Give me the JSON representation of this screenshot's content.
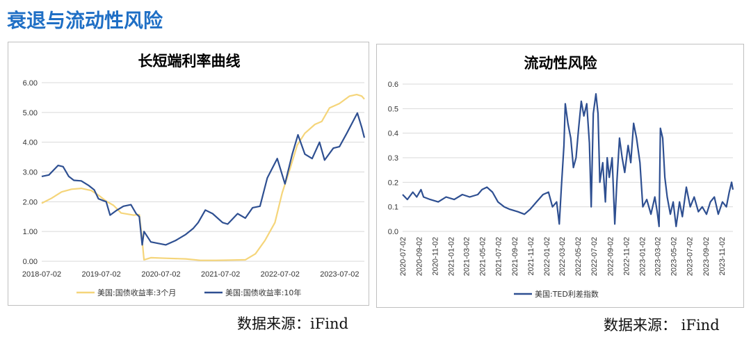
{
  "page": {
    "title": "衰退与流动性风险"
  },
  "source_left": "数据来源：iFind",
  "source_right": "数据来源： iFind",
  "chart_data": [
    {
      "type": "line",
      "title": "长短端利率曲线",
      "ylim": [
        0,
        6
      ],
      "y_ticks": [
        "0.00",
        "1.00",
        "2.00",
        "3.00",
        "4.00",
        "5.00",
        "6.00"
      ],
      "x_ticks": [
        "2018-07-02",
        "2019-07-02",
        "2020-07-02",
        "2021-07-02",
        "2022-07-02",
        "2023-07-02"
      ],
      "x_range": [
        "2018-07-02",
        "2023-12-01"
      ],
      "legend_position": "bottom",
      "series": [
        {
          "name": "美国:国债收益率:3个月",
          "color": "#f5d57a",
          "points": [
            [
              "2018-07-02",
              1.95
            ],
            [
              "2018-09-01",
              2.12
            ],
            [
              "2018-11-01",
              2.33
            ],
            [
              "2019-01-01",
              2.42
            ],
            [
              "2019-03-01",
              2.45
            ],
            [
              "2019-05-01",
              2.38
            ],
            [
              "2019-06-15",
              2.22
            ],
            [
              "2019-08-01",
              2.02
            ],
            [
              "2019-09-15",
              1.88
            ],
            [
              "2019-11-01",
              1.62
            ],
            [
              "2020-01-15",
              1.55
            ],
            [
              "2020-02-20",
              1.57
            ],
            [
              "2020-03-05",
              0.9
            ],
            [
              "2020-03-20",
              0.05
            ],
            [
              "2020-05-01",
              0.12
            ],
            [
              "2020-08-01",
              0.1
            ],
            [
              "2020-12-01",
              0.08
            ],
            [
              "2021-03-01",
              0.03
            ],
            [
              "2021-06-01",
              0.03
            ],
            [
              "2021-09-01",
              0.04
            ],
            [
              "2021-12-01",
              0.05
            ],
            [
              "2022-02-01",
              0.25
            ],
            [
              "2022-04-01",
              0.7
            ],
            [
              "2022-06-01",
              1.3
            ],
            [
              "2022-07-15",
              2.3
            ],
            [
              "2022-09-01",
              3.1
            ],
            [
              "2022-10-15",
              3.9
            ],
            [
              "2022-12-01",
              4.3
            ],
            [
              "2023-02-01",
              4.6
            ],
            [
              "2023-03-15",
              4.7
            ],
            [
              "2023-05-01",
              5.15
            ],
            [
              "2023-07-01",
              5.3
            ],
            [
              "2023-09-01",
              5.55
            ],
            [
              "2023-10-15",
              5.6
            ],
            [
              "2023-11-15",
              5.55
            ],
            [
              "2023-12-01",
              5.45
            ]
          ]
        },
        {
          "name": "美国:国债收益率:10年",
          "color": "#2e4f91",
          "points": [
            [
              "2018-07-02",
              2.85
            ],
            [
              "2018-08-15",
              2.9
            ],
            [
              "2018-10-10",
              3.22
            ],
            [
              "2018-11-10",
              3.18
            ],
            [
              "2018-12-15",
              2.85
            ],
            [
              "2019-01-15",
              2.72
            ],
            [
              "2019-03-01",
              2.7
            ],
            [
              "2019-04-15",
              2.55
            ],
            [
              "2019-05-20",
              2.4
            ],
            [
              "2019-06-15",
              2.1
            ],
            [
              "2019-08-01",
              2.0
            ],
            [
              "2019-08-25",
              1.55
            ],
            [
              "2019-10-01",
              1.7
            ],
            [
              "2019-11-15",
              1.85
            ],
            [
              "2019-12-31",
              1.9
            ],
            [
              "2020-02-01",
              1.6
            ],
            [
              "2020-02-20",
              1.5
            ],
            [
              "2020-03-09",
              0.55
            ],
            [
              "2020-03-20",
              1.0
            ],
            [
              "2020-05-01",
              0.65
            ],
            [
              "2020-08-01",
              0.55
            ],
            [
              "2020-10-01",
              0.7
            ],
            [
              "2020-12-01",
              0.9
            ],
            [
              "2021-01-15",
              1.1
            ],
            [
              "2021-02-15",
              1.3
            ],
            [
              "2021-03-31",
              1.72
            ],
            [
              "2021-05-15",
              1.6
            ],
            [
              "2021-07-15",
              1.3
            ],
            [
              "2021-08-15",
              1.25
            ],
            [
              "2021-10-15",
              1.6
            ],
            [
              "2021-12-01",
              1.45
            ],
            [
              "2022-01-15",
              1.8
            ],
            [
              "2022-03-01",
              1.85
            ],
            [
              "2022-04-15",
              2.8
            ],
            [
              "2022-06-15",
              3.45
            ],
            [
              "2022-08-01",
              2.6
            ],
            [
              "2022-09-15",
              3.6
            ],
            [
              "2022-10-20",
              4.25
            ],
            [
              "2022-12-01",
              3.6
            ],
            [
              "2023-01-15",
              3.45
            ],
            [
              "2023-03-01",
              4.0
            ],
            [
              "2023-04-01",
              3.4
            ],
            [
              "2023-05-25",
              3.8
            ],
            [
              "2023-07-01",
              3.85
            ],
            [
              "2023-08-15",
              4.3
            ],
            [
              "2023-10-19",
              4.98
            ],
            [
              "2023-11-15",
              4.5
            ],
            [
              "2023-12-01",
              4.15
            ]
          ]
        }
      ]
    },
    {
      "type": "line",
      "title": "流动性风险",
      "ylim": [
        0,
        0.6
      ],
      "y_ticks": [
        "0.0",
        "0.1",
        "0.2",
        "0.3",
        "0.4",
        "0.5",
        "0.6"
      ],
      "x_ticks": [
        "2020-07-02",
        "2020-09-02",
        "2020-11-02",
        "2021-01-02",
        "2021-03-02",
        "2021-05-02",
        "2021-07-02",
        "2021-09-02",
        "2021-11-02",
        "2022-01-02",
        "2022-03-02",
        "2022-05-02",
        "2022-07-02",
        "2022-09-02",
        "2022-11-02",
        "2023-01-02",
        "2023-03-02",
        "2023-05-02",
        "2023-07-02",
        "2023-09-02",
        "2023-11-02"
      ],
      "x_range": [
        "2020-07-02",
        "2023-12-15"
      ],
      "legend_position": "bottom",
      "series": [
        {
          "name": "美国:TED利差指数",
          "color": "#2e4f91",
          "points": [
            [
              "2020-07-02",
              0.15
            ],
            [
              "2020-07-20",
              0.13
            ],
            [
              "2020-08-10",
              0.16
            ],
            [
              "2020-08-25",
              0.14
            ],
            [
              "2020-09-10",
              0.17
            ],
            [
              "2020-09-20",
              0.14
            ],
            [
              "2020-10-15",
              0.13
            ],
            [
              "2020-11-15",
              0.12
            ],
            [
              "2020-12-15",
              0.14
            ],
            [
              "2021-01-15",
              0.13
            ],
            [
              "2021-02-15",
              0.15
            ],
            [
              "2021-03-15",
              0.14
            ],
            [
              "2021-04-15",
              0.15
            ],
            [
              "2021-05-01",
              0.17
            ],
            [
              "2021-05-20",
              0.18
            ],
            [
              "2021-06-10",
              0.16
            ],
            [
              "2021-07-01",
              0.12
            ],
            [
              "2021-07-25",
              0.1
            ],
            [
              "2021-08-15",
              0.09
            ],
            [
              "2021-09-15",
              0.08
            ],
            [
              "2021-10-10",
              0.07
            ],
            [
              "2021-11-01",
              0.09
            ],
            [
              "2021-11-25",
              0.12
            ],
            [
              "2021-12-20",
              0.15
            ],
            [
              "2022-01-10",
              0.16
            ],
            [
              "2022-01-25",
              0.1
            ],
            [
              "2022-02-10",
              0.12
            ],
            [
              "2022-02-20",
              0.03
            ],
            [
              "2022-02-28",
              0.18
            ],
            [
              "2022-03-10",
              0.35
            ],
            [
              "2022-03-15",
              0.52
            ],
            [
              "2022-03-25",
              0.44
            ],
            [
              "2022-04-05",
              0.38
            ],
            [
              "2022-04-15",
              0.26
            ],
            [
              "2022-04-25",
              0.3
            ],
            [
              "2022-05-05",
              0.42
            ],
            [
              "2022-05-15",
              0.53
            ],
            [
              "2022-05-25",
              0.47
            ],
            [
              "2022-06-05",
              0.52
            ],
            [
              "2022-06-15",
              0.36
            ],
            [
              "2022-06-22",
              0.1
            ],
            [
              "2022-06-30",
              0.48
            ],
            [
              "2022-07-10",
              0.56
            ],
            [
              "2022-07-18",
              0.48
            ],
            [
              "2022-07-25",
              0.2
            ],
            [
              "2022-08-05",
              0.28
            ],
            [
              "2022-08-15",
              0.12
            ],
            [
              "2022-08-22",
              0.3
            ],
            [
              "2022-08-30",
              0.22
            ],
            [
              "2022-09-10",
              0.3
            ],
            [
              "2022-09-20",
              0.03
            ],
            [
              "2022-09-28",
              0.2
            ],
            [
              "2022-10-08",
              0.38
            ],
            [
              "2022-10-18",
              0.3
            ],
            [
              "2022-10-28",
              0.24
            ],
            [
              "2022-11-10",
              0.35
            ],
            [
              "2022-11-20",
              0.28
            ],
            [
              "2022-12-01",
              0.44
            ],
            [
              "2022-12-12",
              0.38
            ],
            [
              "2022-12-25",
              0.28
            ],
            [
              "2023-01-05",
              0.1
            ],
            [
              "2023-01-20",
              0.13
            ],
            [
              "2023-02-05",
              0.07
            ],
            [
              "2023-02-20",
              0.14
            ],
            [
              "2023-03-01",
              0.08
            ],
            [
              "2023-03-08",
              0.02
            ],
            [
              "2023-03-13",
              0.42
            ],
            [
              "2023-03-22",
              0.38
            ],
            [
              "2023-03-30",
              0.22
            ],
            [
              "2023-04-08",
              0.14
            ],
            [
              "2023-04-20",
              0.07
            ],
            [
              "2023-05-01",
              0.12
            ],
            [
              "2023-05-12",
              0.02
            ],
            [
              "2023-05-25",
              0.12
            ],
            [
              "2023-06-05",
              0.06
            ],
            [
              "2023-06-20",
              0.18
            ],
            [
              "2023-07-05",
              0.1
            ],
            [
              "2023-07-20",
              0.14
            ],
            [
              "2023-08-05",
              0.08
            ],
            [
              "2023-08-20",
              0.1
            ],
            [
              "2023-09-05",
              0.07
            ],
            [
              "2023-09-20",
              0.12
            ],
            [
              "2023-10-05",
              0.14
            ],
            [
              "2023-10-20",
              0.07
            ],
            [
              "2023-11-05",
              0.12
            ],
            [
              "2023-11-20",
              0.1
            ],
            [
              "2023-12-01",
              0.16
            ],
            [
              "2023-12-10",
              0.2
            ],
            [
              "2023-12-15",
              0.17
            ]
          ]
        }
      ]
    }
  ]
}
